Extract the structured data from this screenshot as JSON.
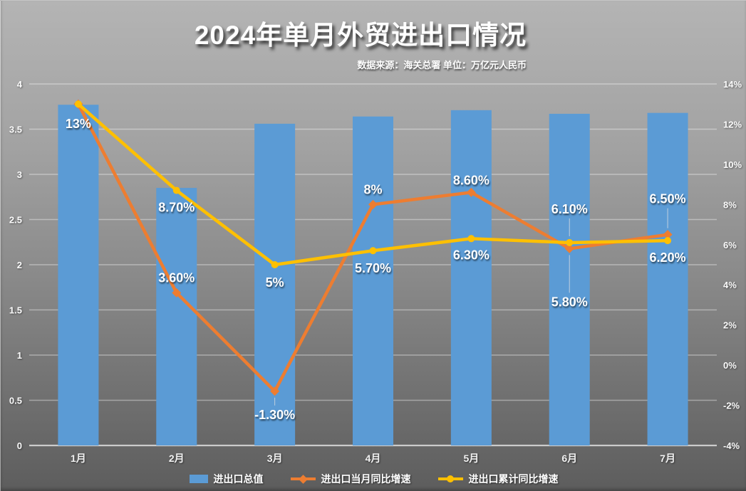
{
  "title": "2024年单月外贸进出口情况",
  "subtitle": "数据来源：海关总署 单位：万亿元人民币",
  "colors": {
    "bar": "#5B9BD5",
    "line_monthly": "#ED7D31",
    "line_cumulative": "#FFC000",
    "background_top": "#b4b4b4",
    "background_bottom": "#5d5d5d",
    "text": "#ffffff",
    "gridline": "rgba(255,255,255,0.38)"
  },
  "chart_data": {
    "type": "bar",
    "subtype": "combo-bar-line",
    "title": "2024年单月外贸进出口情况",
    "subtitle": "数据来源：海关总署 单位：万亿元人民币",
    "categories": [
      "1月",
      "2月",
      "3月",
      "4月",
      "5月",
      "6月",
      "7月"
    ],
    "left_axis": {
      "min": 0,
      "max": 4,
      "ticks": [
        "0",
        "0.5",
        "1",
        "1.5",
        "2",
        "2.5",
        "3",
        "3.5",
        "4"
      ]
    },
    "right_axis": {
      "min": -4,
      "max": 14,
      "step": 2,
      "ticks": [
        "-4%",
        "-2%",
        "0%",
        "2%",
        "4%",
        "6%",
        "8%",
        "10%",
        "12%",
        "14%"
      ]
    },
    "grid": true,
    "legend_position": "bottom",
    "series": [
      {
        "name": "进出口总值",
        "type": "bar",
        "axis": "left",
        "color": "#5B9BD5",
        "values": [
          3.77,
          2.85,
          3.56,
          3.64,
          3.71,
          3.67,
          3.68
        ]
      },
      {
        "name": "进出口当月同比增速",
        "type": "line",
        "axis": "right",
        "color": "#ED7D31",
        "marker": "diamond",
        "values": [
          13,
          3.6,
          -1.3,
          8,
          8.6,
          5.8,
          6.5
        ],
        "labels": [
          {
            "text": ""
          },
          {
            "text": "3.60%",
            "dy": -21
          },
          {
            "text": "-1.30%",
            "dy": 33,
            "leader": true
          },
          {
            "text": "8%",
            "dy": -21
          },
          {
            "text": "8.60%",
            "dy": -17
          },
          {
            "text": "5.80%",
            "dy": 75,
            "leader": true
          },
          {
            "text": "6.50%",
            "dy": -50,
            "leader": true
          }
        ]
      },
      {
        "name": "进出口累计同比增速",
        "type": "line",
        "axis": "right",
        "color": "#FFC000",
        "marker": "circle",
        "values": [
          13,
          8.7,
          5,
          5.7,
          6.3,
          6.1,
          6.2
        ],
        "labels": [
          {
            "text": "13%",
            "dy": 28
          },
          {
            "text": "8.70%",
            "dy": 24
          },
          {
            "text": "5%",
            "dy": 25
          },
          {
            "text": "5.70%",
            "dy": 25
          },
          {
            "text": "6.30%",
            "dy": 23
          },
          {
            "text": "6.10%",
            "dy": -47,
            "leader": true
          },
          {
            "text": "6.20%",
            "dy": 24
          }
        ]
      }
    ]
  }
}
